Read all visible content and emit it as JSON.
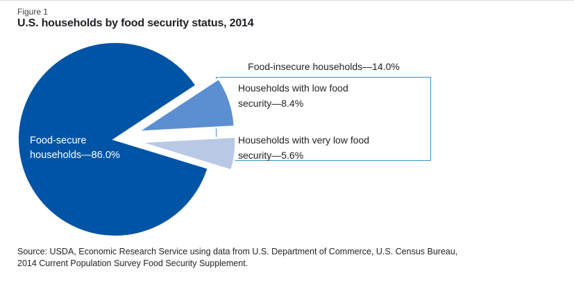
{
  "figure": {
    "number": "Figure 1",
    "title": "U.S. households by food security status, 2014"
  },
  "pie_label": {
    "lines": [
      "Food-secure",
      "households—86.0%"
    ]
  },
  "callout": {
    "header": "Food-insecure households—14.0%",
    "items": [
      {
        "lines": [
          "Households with low food",
          "security—8.4%"
        ]
      },
      {
        "lines": [
          "Households with very low food",
          "security—5.6%"
        ]
      }
    ]
  },
  "source": {
    "lines": [
      "Source: USDA, Economic Research Service using data from U.S. Department of Commerce, U.S. Census Bureau,",
      "2014 Current Population Survey Food Security Supplement."
    ]
  },
  "colors": {
    "food_secure": "#0054a5",
    "low_food_security": "#5c8ed2",
    "very_low_food_security": "#b7c9e5",
    "callout_border": "#3391cd",
    "pie_label_text": "#ffffff",
    "body_text": "#222226"
  },
  "chart_data": {
    "type": "pie",
    "title": "U.S. households by food security status, 2014",
    "figure_label": "Figure 1",
    "slices": [
      {
        "label": "Food-secure households",
        "value": 86.0,
        "color": "#0054a5",
        "display": "Food-secure households—86.0%"
      },
      {
        "label": "Households with low food security",
        "value": 8.4,
        "color": "#5c8ed2",
        "display": "Households with low food security—8.4%"
      },
      {
        "label": "Households with very low food security",
        "value": 5.6,
        "color": "#b7c9e5",
        "display": "Households with very low food security—5.6%"
      }
    ],
    "annotation_group": {
      "label": "Food-insecure households",
      "value": 14.0,
      "display": "Food-insecure households—14.0%"
    },
    "legend_position": "callout-right-of-exploded-slices",
    "explode": "both food-insecure slices pulled out toward callout box",
    "source": "Source: USDA, Economic Research Service using data from U.S. Department of Commerce, U.S. Census Bureau, 2014 Current Population Survey Food Security Supplement."
  }
}
